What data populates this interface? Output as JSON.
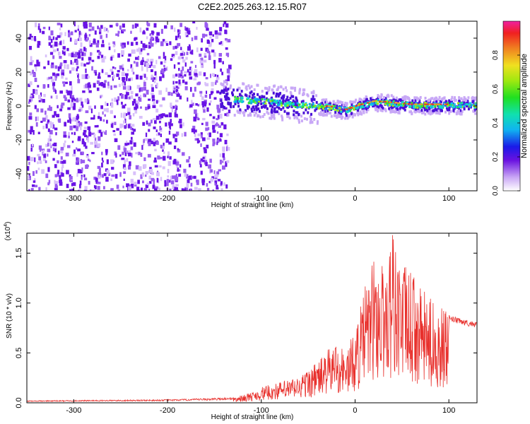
{
  "title": "C2E2.2025.263.12.15.R07",
  "chart_data": [
    {
      "type": "heatmap",
      "name": "spectrogram",
      "title": "C2E2.2025.263.12.15.R07",
      "xlabel": "Height of straight line (km)",
      "ylabel": "Frequency (Hz)",
      "xlim": [
        -350,
        130
      ],
      "ylim": [
        -50,
        50
      ],
      "xticks": [
        -300,
        -200,
        -100,
        0,
        100
      ],
      "xtick_labels": [
        "-300",
        "-200",
        "-100",
        "0",
        "100"
      ],
      "yticks": [
        -40,
        -20,
        0,
        20,
        40
      ],
      "ytick_labels": [
        "-40",
        "-20",
        "0",
        "20",
        "40"
      ],
      "noise_region_km": [
        -350,
        -145
      ],
      "signal_region_km": [
        -145,
        130
      ],
      "peak_frequency_trace": [
        {
          "x": -150,
          "y": 6
        },
        {
          "x": -120,
          "y": 4
        },
        {
          "x": -90,
          "y": 3
        },
        {
          "x": -60,
          "y": 1
        },
        {
          "x": -30,
          "y": 0
        },
        {
          "x": -10,
          "y": -2
        },
        {
          "x": 0,
          "y": 0
        },
        {
          "x": 20,
          "y": 3
        },
        {
          "x": 40,
          "y": 2
        },
        {
          "x": 60,
          "y": 1
        },
        {
          "x": 90,
          "y": 1
        },
        {
          "x": 130,
          "y": 1
        }
      ],
      "colorbar": {
        "label": "Normalized spectral amplitude",
        "range": [
          0,
          1
        ],
        "ticks": [
          0.0,
          0.2,
          0.4,
          0.6,
          0.8
        ],
        "tick_labels": [
          "0.0",
          "0.2",
          "0.4",
          "0.6",
          "0.8"
        ]
      }
    },
    {
      "type": "line",
      "name": "snr",
      "xlabel": "Height of straight line (km)",
      "ylabel": "SNR (10 * v/v)",
      "y_multiplier": "(x10",
      "y_multiplier_exp": "4",
      "y_multiplier_close": ")",
      "xlim": [
        -350,
        130
      ],
      "ylim": [
        0,
        1.7
      ],
      "xticks": [
        -300,
        -200,
        -100,
        0,
        100
      ],
      "xtick_labels": [
        "-300",
        "-200",
        "-100",
        "0",
        "100"
      ],
      "yticks": [
        0,
        0.5,
        1.0,
        1.5
      ],
      "ytick_labels": [
        "0.0",
        "0.5",
        "1.0",
        "1.5"
      ],
      "series": [
        {
          "name": "SNR",
          "color": "#e8302c",
          "envelope_x": [
            -350,
            -200,
            -160,
            -130,
            -110,
            -100,
            -80,
            -60,
            -40,
            -30,
            -20,
            -10,
            0,
            10,
            20,
            30,
            40,
            50,
            60,
            70,
            80,
            90,
            95,
            100,
            110,
            120,
            130
          ],
          "envelope_y": [
            0.02,
            0.03,
            0.04,
            0.05,
            0.1,
            0.15,
            0.2,
            0.25,
            0.4,
            0.5,
            0.6,
            0.5,
            0.7,
            1.1,
            1.4,
            1.35,
            1.65,
            1.35,
            1.25,
            1.1,
            1.0,
            0.95,
            0.9,
            0.85,
            0.82,
            0.8,
            0.78
          ],
          "peak": {
            "x": 40,
            "y": 1.68
          },
          "min_dip": {
            "x": 95,
            "y": 0.33
          }
        }
      ]
    }
  ]
}
